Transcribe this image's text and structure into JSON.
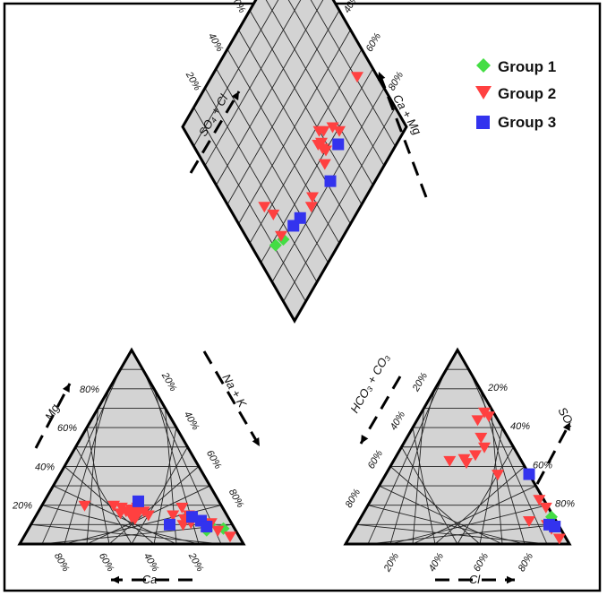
{
  "chart_data": {
    "type": "scatter",
    "subtype": "piper-diagram",
    "plot_background": "#d3d3d3",
    "grid": true,
    "legend_position": "top-right",
    "legend": [
      {
        "label": "Group  1",
        "marker": "diamond",
        "color": "#44dd44"
      },
      {
        "label": "Group  2",
        "marker": "triangle-down",
        "color": "#ff4040"
      },
      {
        "label": "Group  3",
        "marker": "square",
        "color": "#3333ee"
      }
    ],
    "axis_labels": {
      "mg": "Mg",
      "ca": "Ca",
      "na_k": "Na + K",
      "so4": "SO₄",
      "cl": "Cl",
      "hco3_co3": "HCO₃ + CO₃",
      "so4_cl": "SO₄ + Cl",
      "ca_mg": "Ca + Mg"
    },
    "tick_labels": [
      "20%",
      "40%",
      "60%",
      "80%"
    ],
    "cation_triangle": {
      "axes": [
        "Ca",
        "Mg",
        "Na+K"
      ],
      "series": [
        {
          "name": "Group  1",
          "points": [
            {
              "ca": 10,
              "mg": 10
            },
            {
              "ca": 13,
              "mg": 7
            },
            {
              "ca": 5,
              "mg": 8
            }
          ]
        },
        {
          "name": "Group  2",
          "points": [
            {
              "ca": 61,
              "mg": 20
            },
            {
              "ca": 48,
              "mg": 20
            },
            {
              "ca": 45,
              "mg": 19
            },
            {
              "ca": 44,
              "mg": 17
            },
            {
              "ca": 47,
              "mg": 16
            },
            {
              "ca": 42,
              "mg": 17
            },
            {
              "ca": 41,
              "mg": 18
            },
            {
              "ca": 39,
              "mg": 16
            },
            {
              "ca": 40,
              "mg": 15
            },
            {
              "ca": 38,
              "mg": 19
            },
            {
              "ca": 43,
              "mg": 14
            },
            {
              "ca": 42,
              "mg": 13
            },
            {
              "ca": 36,
              "mg": 17
            },
            {
              "ca": 35,
              "mg": 15
            },
            {
              "ca": 24,
              "mg": 15
            },
            {
              "ca": 18,
              "mg": 19
            },
            {
              "ca": 14,
              "mg": 12
            },
            {
              "ca": 20,
              "mg": 13
            },
            {
              "ca": 9,
              "mg": 11
            },
            {
              "ca": 8,
              "mg": 7
            },
            {
              "ca": 4,
              "mg": 4
            },
            {
              "ca": 22,
              "mg": 10
            },
            {
              "ca": 18,
              "mg": 11
            },
            {
              "ca": 17,
              "mg": 15
            }
          ]
        },
        {
          "name": "Group  3",
          "points": [
            {
              "ca": 36,
              "mg": 22
            },
            {
              "ca": 28,
              "mg": 10
            },
            {
              "ca": 13,
              "mg": 12
            },
            {
              "ca": 12,
              "mg": 9
            },
            {
              "ca": 16,
              "mg": 14
            }
          ]
        }
      ]
    },
    "anion_triangle": {
      "axes": [
        "Cl",
        "SO4",
        "HCO3+CO3"
      ],
      "series": [
        {
          "name": "Group  1",
          "points": [
            {
              "cl": 85,
              "so4": 14
            }
          ]
        },
        {
          "name": "Group  2",
          "points": [
            {
              "cl": 28,
              "so4": 68
            },
            {
              "cl": 31,
              "so4": 66
            },
            {
              "cl": 27,
              "so4": 64
            },
            {
              "cl": 33,
              "so4": 55
            },
            {
              "cl": 37,
              "so4": 50
            },
            {
              "cl": 31,
              "so4": 44
            },
            {
              "cl": 33,
              "so4": 42
            },
            {
              "cl": 35,
              "so4": 46
            },
            {
              "cl": 25,
              "so4": 43
            },
            {
              "cl": 50,
              "so4": 36
            },
            {
              "cl": 75,
              "so4": 23
            },
            {
              "cl": 80,
              "so4": 19
            },
            {
              "cl": 76,
              "so4": 12
            },
            {
              "cl": 94,
              "so4": 3
            },
            {
              "cl": 88,
              "so4": 8
            },
            {
              "cl": 85,
              "so4": 10
            }
          ]
        },
        {
          "name": "Group  3",
          "points": [
            {
              "cl": 64,
              "so4": 36
            },
            {
              "cl": 86,
              "so4": 10
            },
            {
              "cl": 89,
              "so4": 9
            }
          ]
        }
      ]
    },
    "diamond": {
      "axes": [
        "SO4+Cl",
        "Ca+Mg"
      ],
      "series": [
        {
          "name": "Group  1",
          "points": [
            {
              "so4_cl": 74,
              "ca_mg": 16
            },
            {
              "so4_cl": 72,
              "ca_mg": 11
            }
          ]
        },
        {
          "name": "Group  2",
          "points": [
            {
              "so4_cl": 65,
              "ca_mg": 91
            },
            {
              "so4_cl": 71,
              "ca_mg": 69
            },
            {
              "so4_cl": 67,
              "ca_mg": 67
            },
            {
              "so4_cl": 64,
              "ca_mg": 62
            },
            {
              "so4_cl": 62,
              "ca_mg": 60
            },
            {
              "so4_cl": 66,
              "ca_mg": 58
            },
            {
              "so4_cl": 70,
              "ca_mg": 58
            },
            {
              "so4_cl": 65,
              "ca_mg": 56
            },
            {
              "so4_cl": 68,
              "ca_mg": 57
            },
            {
              "so4_cl": 73,
              "ca_mg": 54
            },
            {
              "so4_cl": 76,
              "ca_mg": 40
            },
            {
              "so4_cl": 78,
              "ca_mg": 37
            },
            {
              "so4_cl": 72,
              "ca_mg": 16
            },
            {
              "so4_cl": 63,
              "ca_mg": 18
            },
            {
              "so4_cl": 57,
              "ca_mg": 16
            }
          ]
        },
        {
          "name": "Group  3",
          "points": [
            {
              "so4_cl": 74,
              "ca_mg": 65
            },
            {
              "so4_cl": 80,
              "ca_mg": 52
            },
            {
              "so4_cl": 76,
              "ca_mg": 29
            },
            {
              "so4_cl": 75,
              "ca_mg": 24
            }
          ]
        }
      ]
    }
  }
}
